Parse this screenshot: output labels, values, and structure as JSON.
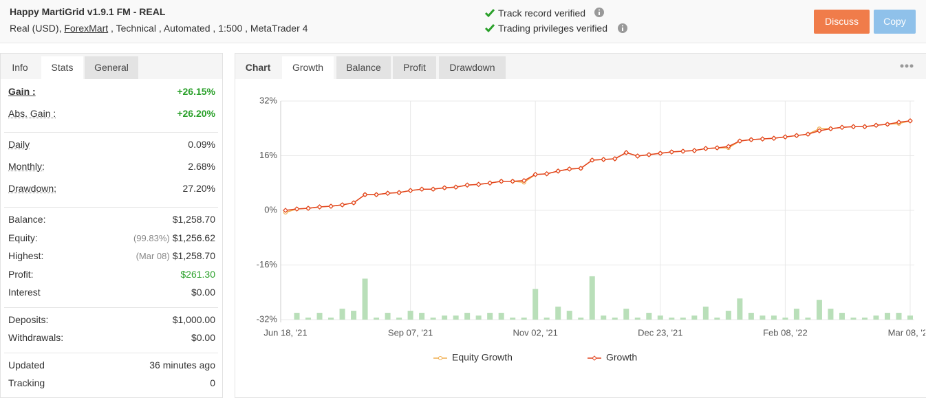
{
  "header": {
    "title": "Happy MartiGrid v1.9.1 FM - REAL",
    "account": "Real (USD),",
    "broker": "ForexMart",
    "details": ", Technical , Automated , 1:500 , MetaTrader 4",
    "verified": [
      "Track record verified",
      "Trading privileges verified"
    ],
    "buttons": [
      "Discuss",
      "Copy"
    ]
  },
  "sidebar": {
    "tabs": [
      "Info",
      "Stats",
      "General"
    ],
    "groups": [
      [
        {
          "label": "Gain :",
          "value": "+26.15%",
          "color": "#2aa02a"
        },
        {
          "label": "Abs. Gain :",
          "value": "+26.20%",
          "color": "#2aa02a"
        }
      ],
      [
        {
          "label": "Daily",
          "value": "0.09%"
        },
        {
          "label": "Monthly:",
          "value": "2.68%"
        },
        {
          "label": "Drawdown:",
          "value": "27.20%"
        }
      ],
      [
        {
          "label": "Balance:",
          "value": "$1,258.70"
        },
        {
          "label": "Equity:",
          "note": "(99.83%)",
          "value": "$1,256.62"
        },
        {
          "label": "Highest:",
          "note": "(Mar 08)",
          "value": "$1,258.70"
        },
        {
          "label": "Profit:",
          "value": "$261.30",
          "color": "#2aa02a"
        },
        {
          "label": "Interest",
          "value": "$0.00"
        }
      ],
      [
        {
          "label": "Deposits:",
          "value": "$1,000.00"
        },
        {
          "label": "Withdrawals:",
          "value": "$0.00"
        }
      ],
      [
        {
          "label": "Updated",
          "value": "36 minutes ago"
        },
        {
          "label": "Tracking",
          "value": "0"
        }
      ]
    ]
  },
  "chart_tabs": [
    "Chart",
    "Growth",
    "Balance",
    "Profit",
    "Drawdown"
  ],
  "chart_data": {
    "type": "line",
    "categories": [
      "Jun 18, '21",
      null,
      null,
      null,
      null,
      null,
      null,
      null,
      null,
      null,
      null,
      "Sep 07, '21",
      null,
      null,
      null,
      null,
      null,
      null,
      null,
      null,
      null,
      null,
      "Nov 02, '21",
      null,
      null,
      null,
      null,
      null,
      null,
      null,
      null,
      null,
      null,
      "Dec 23, '21",
      null,
      null,
      null,
      null,
      null,
      null,
      null,
      null,
      null,
      null,
      "Feb 08, '22",
      null,
      null,
      null,
      null,
      null,
      null,
      null,
      null,
      null,
      null,
      "Mar 08, '22"
    ],
    "series": [
      {
        "name": "Equity Growth",
        "color": "#f0ad4e",
        "values": [
          -0.6,
          0.4,
          0.6,
          1.0,
          1.2,
          1.6,
          2.2,
          4.6,
          4.6,
          5.0,
          5.2,
          5.8,
          6.2,
          6.2,
          6.6,
          6.8,
          7.4,
          7.6,
          8.0,
          8.5,
          8.5,
          8.2,
          10.5,
          10.7,
          11.5,
          12.1,
          12.3,
          14.7,
          14.9,
          15.1,
          16.9,
          15.9,
          16.3,
          16.7,
          17.1,
          17.3,
          17.5,
          18.1,
          18.3,
          18.3,
          20.3,
          20.7,
          20.9,
          21.1,
          21.5,
          21.9,
          22.3,
          23.9,
          23.9,
          24.3,
          24.5,
          24.5,
          24.9,
          25.2,
          25.4,
          26.2
        ]
      },
      {
        "name": "Growth",
        "color": "#e2431e",
        "values": [
          0,
          0.4,
          0.6,
          1.0,
          1.2,
          1.6,
          2.2,
          4.6,
          4.6,
          5.0,
          5.2,
          5.8,
          6.2,
          6.2,
          6.6,
          6.8,
          7.4,
          7.6,
          8.0,
          8.5,
          8.5,
          8.7,
          10.5,
          10.7,
          11.5,
          12.1,
          12.3,
          14.7,
          14.9,
          15.1,
          16.9,
          15.9,
          16.3,
          16.7,
          17.1,
          17.3,
          17.5,
          18.1,
          18.3,
          18.7,
          20.3,
          20.7,
          20.9,
          21.1,
          21.5,
          21.9,
          22.3,
          23.3,
          23.9,
          24.3,
          24.5,
          24.5,
          24.9,
          25.2,
          25.8,
          26.2
        ]
      }
    ],
    "bars": {
      "color": "#b9dfb9",
      "values": [
        null,
        2,
        0.6,
        2,
        0.6,
        3.2,
        2.6,
        12,
        0.6,
        2,
        0.6,
        2.6,
        2,
        0.6,
        1.2,
        1.2,
        2,
        1.2,
        2,
        2,
        0.6,
        0.6,
        9,
        0.6,
        3.8,
        2.6,
        0.6,
        12.7,
        1.2,
        0.6,
        3.2,
        0.6,
        2,
        1.2,
        0.6,
        0.6,
        1.2,
        3.8,
        0.6,
        2.6,
        6.2,
        2,
        1.2,
        1.2,
        0.6,
        3.2,
        0.6,
        5.8,
        3.2,
        2,
        0.6,
        0.6,
        1.2,
        2,
        2,
        1.2
      ]
    },
    "ylim": [
      -32,
      32
    ],
    "yticks": [
      {
        "value": 32,
        "label": "32%"
      },
      {
        "value": 16,
        "label": "16%"
      },
      {
        "value": 0,
        "label": "0%"
      },
      {
        "value": -16,
        "label": "-16%"
      },
      {
        "value": -32,
        "label": "-32%"
      }
    ],
    "grid": true
  }
}
